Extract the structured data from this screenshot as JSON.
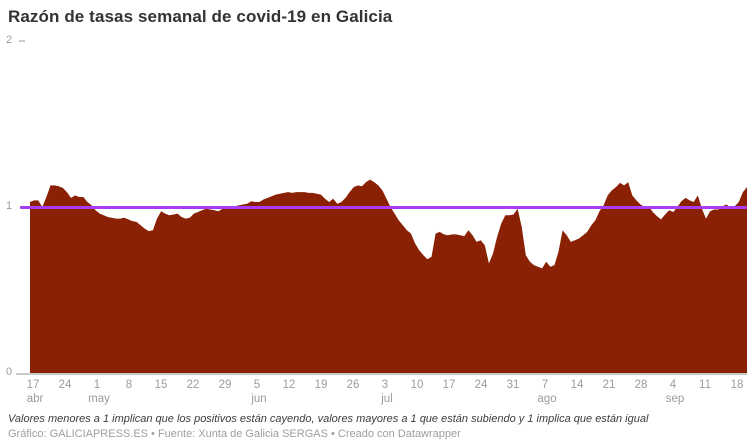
{
  "header": {
    "title": "Razón de tasas semanal de covid-19 en Galicia"
  },
  "footer": {
    "note": "Valores menores a 1 implican que los positivos están cayendo, valores mayores a 1 que están subiendo y 1 implica que están igual",
    "credit": "Gráfico: GALICIAPRESS.ES • Fuente: Xunta de Galicia SERGAS • Creado con Datawrapper"
  },
  "chart_data": {
    "type": "area",
    "title": "Razón de tasas semanal de covid-19 en Galicia",
    "xlabel": "",
    "ylabel": "",
    "y_axis": {
      "min": 0,
      "max": 2,
      "tick_values": [
        2,
        1,
        0
      ]
    },
    "reference_line": {
      "value": 1,
      "color": "#a73cf0"
    },
    "colors": {
      "area": "#8a2104",
      "axis_text": "#9b9b9b",
      "baseline": "#c9c9c9"
    },
    "grid": "off",
    "legend": "none",
    "x_ticks": [
      {
        "day": "17",
        "month": "abr"
      },
      {
        "day": "24",
        "month": ""
      },
      {
        "day": "1",
        "month": "may"
      },
      {
        "day": "8",
        "month": ""
      },
      {
        "day": "15",
        "month": ""
      },
      {
        "day": "22",
        "month": ""
      },
      {
        "day": "29",
        "month": ""
      },
      {
        "day": "5",
        "month": "jun"
      },
      {
        "day": "12",
        "month": ""
      },
      {
        "day": "19",
        "month": ""
      },
      {
        "day": "26",
        "month": ""
      },
      {
        "day": "3",
        "month": "jul"
      },
      {
        "day": "10",
        "month": ""
      },
      {
        "day": "17",
        "month": ""
      },
      {
        "day": "24",
        "month": ""
      },
      {
        "day": "31",
        "month": ""
      },
      {
        "day": "7",
        "month": "ago"
      },
      {
        "day": "14",
        "month": ""
      },
      {
        "day": "21",
        "month": ""
      },
      {
        "day": "28",
        "month": ""
      },
      {
        "day": "4",
        "month": "sep"
      },
      {
        "day": "11",
        "month": ""
      },
      {
        "day": "18",
        "month": ""
      }
    ],
    "values": [
      1.03,
      1.04,
      1.04,
      1.0,
      1.06,
      1.13,
      1.13,
      1.125,
      1.115,
      1.09,
      1.055,
      1.07,
      1.06,
      1.06,
      1.03,
      1.01,
      0.98,
      0.96,
      0.95,
      0.94,
      0.935,
      0.93,
      0.93,
      0.935,
      0.925,
      0.915,
      0.91,
      0.89,
      0.87,
      0.855,
      0.86,
      0.93,
      0.975,
      0.96,
      0.95,
      0.955,
      0.96,
      0.94,
      0.93,
      0.935,
      0.96,
      0.97,
      0.98,
      0.99,
      0.985,
      0.98,
      0.975,
      0.99,
      0.995,
      1.0,
      1.005,
      1.01,
      1.015,
      1.02,
      1.035,
      1.03,
      1.03,
      1.045,
      1.055,
      1.065,
      1.075,
      1.08,
      1.085,
      1.09,
      1.085,
      1.09,
      1.09,
      1.09,
      1.085,
      1.085,
      1.08,
      1.075,
      1.05,
      1.03,
      1.05,
      1.02,
      1.03,
      1.055,
      1.09,
      1.12,
      1.13,
      1.125,
      1.15,
      1.165,
      1.15,
      1.13,
      1.1,
      1.05,
      1.0,
      0.96,
      0.92,
      0.89,
      0.86,
      0.84,
      0.78,
      0.74,
      0.71,
      0.685,
      0.7,
      0.84,
      0.85,
      0.835,
      0.83,
      0.835,
      0.835,
      0.83,
      0.825,
      0.86,
      0.83,
      0.79,
      0.8,
      0.77,
      0.66,
      0.72,
      0.82,
      0.9,
      0.95,
      0.95,
      0.955,
      0.99,
      0.88,
      0.71,
      0.67,
      0.65,
      0.64,
      0.63,
      0.67,
      0.64,
      0.65,
      0.73,
      0.86,
      0.83,
      0.79,
      0.8,
      0.81,
      0.83,
      0.85,
      0.89,
      0.92,
      0.975,
      1.01,
      1.07,
      1.1,
      1.12,
      1.145,
      1.13,
      1.15,
      1.07,
      1.04,
      1.015,
      1.0,
      1.005,
      0.97,
      0.945,
      0.925,
      0.955,
      0.98,
      0.97,
      1.0,
      1.035,
      1.055,
      1.04,
      1.03,
      1.07,
      0.99,
      0.93,
      0.975,
      0.985,
      0.985,
      1.005,
      1.015,
      0.995,
      1.005,
      1.03,
      1.09,
      1.12
    ]
  }
}
